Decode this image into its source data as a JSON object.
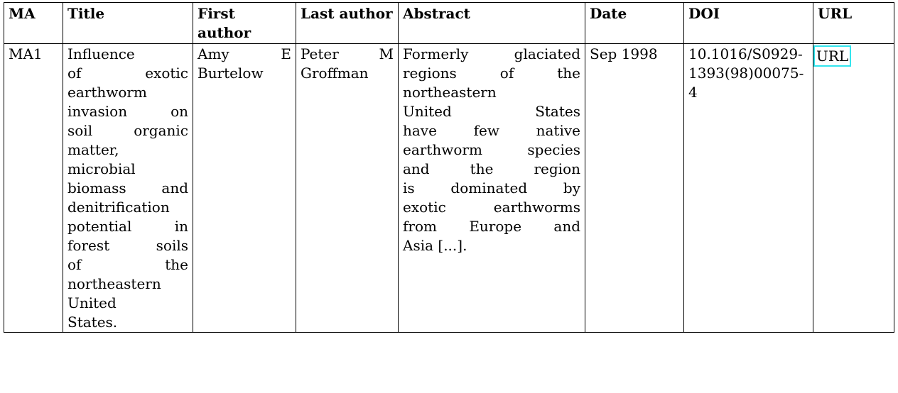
{
  "table": {
    "headers": {
      "ma": "MA",
      "title": "Title",
      "first_author": "First author",
      "last_author": "Last author",
      "abstract": "Abstract",
      "date": "Date",
      "doi": "DOI",
      "url": "URL"
    },
    "rows": [
      {
        "ma": "MA1",
        "title_lines": [
          "Influence",
          "of exotic",
          "earthworm",
          "invasion on",
          "soil organic",
          "matter,",
          "microbial",
          "biomass and",
          "denitrification",
          "potential in",
          "forest soils",
          "of the",
          "northeastern",
          "United",
          "States."
        ],
        "first_author_lines": [
          "Amy E",
          "Burtelow"
        ],
        "last_author_lines": [
          "Peter M",
          "Groffman"
        ],
        "abstract_lines": [
          "Formerly glaciated",
          "regions of the",
          "northeastern",
          "United States",
          "have few native",
          "earthworm species",
          "and the region",
          "is dominated by",
          "exotic earthworms",
          "from Europe and",
          "Asia [...]."
        ],
        "date": "Sep 1998",
        "doi_lines": [
          "10.1016/S0929-",
          "1393(98)00075-",
          "4"
        ],
        "url_label": "URL"
      }
    ]
  }
}
